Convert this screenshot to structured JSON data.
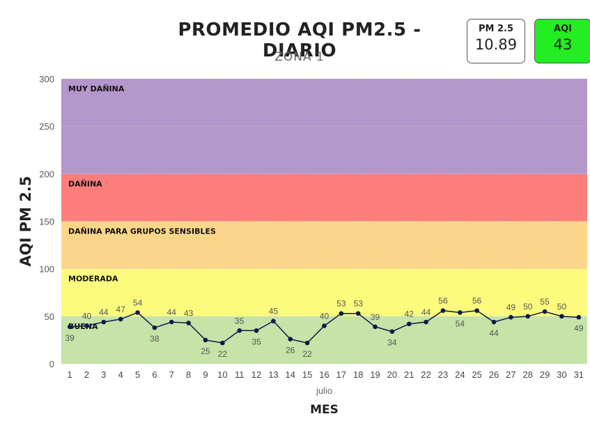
{
  "header": {
    "title": "PROMEDIO AQI PM2.5 - DIARIO",
    "subtitle": "ZONA 1"
  },
  "kpis": {
    "pm25": {
      "label": "PM 2.5",
      "value": "10.89"
    },
    "aqi": {
      "label": "AQI",
      "value": "43",
      "color": "#22ee22"
    }
  },
  "chart_data": {
    "type": "line",
    "title": "PROMEDIO AQI PM2.5 - DIARIO",
    "subtitle": "ZONA 1",
    "xlabel": "MES",
    "xgroup_label": "julio",
    "ylabel": "AQI PM 2.5",
    "ylim": [
      0,
      300
    ],
    "yticks": [
      0,
      50,
      100,
      150,
      200,
      250,
      300
    ],
    "grid": true,
    "x": [
      1,
      2,
      3,
      4,
      5,
      6,
      7,
      8,
      9,
      10,
      11,
      12,
      13,
      14,
      15,
      16,
      17,
      18,
      19,
      20,
      21,
      22,
      23,
      24,
      25,
      26,
      27,
      28,
      29,
      30,
      31
    ],
    "values": [
      39,
      40,
      44,
      47,
      54,
      38,
      44,
      43,
      25,
      22,
      35,
      35,
      45,
      26,
      22,
      40,
      53,
      53,
      39,
      34,
      42,
      44,
      56,
      54,
      56,
      44,
      49,
      50,
      55,
      50,
      49
    ],
    "line_color": "#0d1a4a",
    "bands": [
      {
        "label": "BUENA",
        "from": 0,
        "to": 50,
        "color": "#c6e3a8"
      },
      {
        "label": "MODERADA",
        "from": 50,
        "to": 100,
        "color": "#fdfb7e"
      },
      {
        "label": "DAÑINA PARA GRUPOS SENSIBLES",
        "from": 100,
        "to": 150,
        "color": "#fbd68a"
      },
      {
        "label": "DAÑINA",
        "from": 150,
        "to": 200,
        "color": "#fb7e7a"
      },
      {
        "label": "MUY DAÑINA",
        "from": 200,
        "to": 300,
        "color": "#b497cb"
      }
    ]
  }
}
